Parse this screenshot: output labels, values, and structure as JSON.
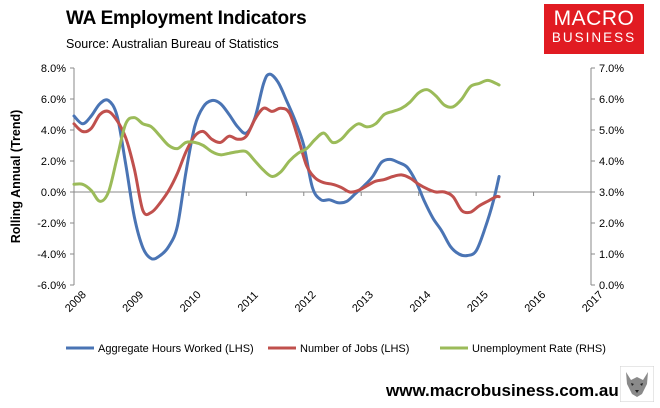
{
  "header": {
    "title": "WA Employment Indicators",
    "subtitle": "Source: Australian Bureau of Statistics"
  },
  "logo": {
    "line1": "MACRO",
    "line2": "BUSINESS"
  },
  "footer": {
    "website": "www.macrobusiness.com.au"
  },
  "colors": {
    "hours": "#4a74b4",
    "jobs": "#c0504d",
    "unemployment": "#9bbb59",
    "brand_red": "#e11b22"
  },
  "chart_data": {
    "type": "line",
    "xlabel": "",
    "ylabel": "Rolling Annual (Trend)",
    "x_tick_labels": [
      "2008",
      "2009",
      "2010",
      "2011",
      "2012",
      "2013",
      "2014",
      "2015",
      "2016",
      "2017"
    ],
    "xlim": [
      2008,
      2017
    ],
    "ylim_left": [
      -6,
      8
    ],
    "ylim_right": [
      0,
      7
    ],
    "y_tick_labels_left": [
      "8.0%",
      "6.0%",
      "4.0%",
      "2.0%",
      "0.0%",
      "-2.0%",
      "-4.0%",
      "-6.0%"
    ],
    "y_tick_labels_right": [
      "7.0%",
      "6.0%",
      "5.0%",
      "4.0%",
      "3.0%",
      "2.0%",
      "1.0%",
      "0.0%"
    ],
    "legend_position": "bottom",
    "grid": false,
    "series": [
      {
        "name": "Aggregate Hours Worked (LHS)",
        "axis": "left",
        "points": [
          [
            2008.0,
            4.9
          ],
          [
            2008.15,
            4.4
          ],
          [
            2008.3,
            4.9
          ],
          [
            2008.45,
            5.7
          ],
          [
            2008.6,
            5.9
          ],
          [
            2008.75,
            4.9
          ],
          [
            2008.9,
            1.8
          ],
          [
            2009.05,
            -1.6
          ],
          [
            2009.2,
            -3.6
          ],
          [
            2009.35,
            -4.3
          ],
          [
            2009.5,
            -4.1
          ],
          [
            2009.65,
            -3.5
          ],
          [
            2009.8,
            -2.2
          ],
          [
            2009.95,
            1.3
          ],
          [
            2010.1,
            4.2
          ],
          [
            2010.25,
            5.5
          ],
          [
            2010.4,
            5.9
          ],
          [
            2010.55,
            5.7
          ],
          [
            2010.7,
            5.0
          ],
          [
            2010.85,
            4.2
          ],
          [
            2011.0,
            3.8
          ],
          [
            2011.15,
            4.8
          ],
          [
            2011.3,
            7.0
          ],
          [
            2011.4,
            7.6
          ],
          [
            2011.55,
            7.1
          ],
          [
            2011.7,
            5.9
          ],
          [
            2011.85,
            4.6
          ],
          [
            2012.0,
            3.0
          ],
          [
            2012.15,
            0.3
          ],
          [
            2012.3,
            -0.5
          ],
          [
            2012.45,
            -0.5
          ],
          [
            2012.6,
            -0.7
          ],
          [
            2012.75,
            -0.6
          ],
          [
            2012.9,
            -0.1
          ],
          [
            2013.05,
            0.4
          ],
          [
            2013.2,
            1.0
          ],
          [
            2013.35,
            1.9
          ],
          [
            2013.5,
            2.1
          ],
          [
            2013.65,
            1.9
          ],
          [
            2013.8,
            1.6
          ],
          [
            2013.95,
            0.7
          ],
          [
            2014.1,
            -0.6
          ],
          [
            2014.25,
            -1.7
          ],
          [
            2014.4,
            -2.5
          ],
          [
            2014.55,
            -3.5
          ],
          [
            2014.7,
            -4.0
          ],
          [
            2014.85,
            -4.1
          ],
          [
            2015.0,
            -3.8
          ],
          [
            2015.15,
            -2.4
          ],
          [
            2015.3,
            -0.6
          ],
          [
            2015.4,
            1.0
          ]
        ]
      },
      {
        "name": "Number of Jobs (LHS)",
        "axis": "left",
        "points": [
          [
            2008.0,
            4.4
          ],
          [
            2008.15,
            3.9
          ],
          [
            2008.3,
            4.1
          ],
          [
            2008.45,
            5.0
          ],
          [
            2008.6,
            5.2
          ],
          [
            2008.75,
            4.6
          ],
          [
            2008.9,
            3.5
          ],
          [
            2009.05,
            1.5
          ],
          [
            2009.2,
            -1.2
          ],
          [
            2009.35,
            -1.3
          ],
          [
            2009.5,
            -0.7
          ],
          [
            2009.65,
            0.1
          ],
          [
            2009.8,
            1.2
          ],
          [
            2009.95,
            2.6
          ],
          [
            2010.1,
            3.6
          ],
          [
            2010.25,
            3.9
          ],
          [
            2010.4,
            3.4
          ],
          [
            2010.55,
            3.2
          ],
          [
            2010.7,
            3.6
          ],
          [
            2010.85,
            3.4
          ],
          [
            2011.0,
            3.6
          ],
          [
            2011.15,
            4.7
          ],
          [
            2011.3,
            5.4
          ],
          [
            2011.45,
            5.2
          ],
          [
            2011.6,
            5.4
          ],
          [
            2011.75,
            5.1
          ],
          [
            2011.9,
            3.5
          ],
          [
            2012.05,
            1.7
          ],
          [
            2012.2,
            0.9
          ],
          [
            2012.35,
            0.6
          ],
          [
            2012.5,
            0.5
          ],
          [
            2012.65,
            0.3
          ],
          [
            2012.8,
            0.0
          ],
          [
            2012.95,
            0.1
          ],
          [
            2013.1,
            0.4
          ],
          [
            2013.25,
            0.7
          ],
          [
            2013.4,
            0.8
          ],
          [
            2013.55,
            1.0
          ],
          [
            2013.7,
            1.1
          ],
          [
            2013.85,
            0.9
          ],
          [
            2014.0,
            0.5
          ],
          [
            2014.15,
            0.2
          ],
          [
            2014.3,
            0.0
          ],
          [
            2014.45,
            0.0
          ],
          [
            2014.6,
            -0.3
          ],
          [
            2014.75,
            -1.2
          ],
          [
            2014.9,
            -1.3
          ],
          [
            2015.05,
            -0.9
          ],
          [
            2015.2,
            -0.6
          ],
          [
            2015.35,
            -0.3
          ],
          [
            2015.4,
            -0.3
          ]
        ]
      },
      {
        "name": "Unemployment Rate (RHS)",
        "axis": "right",
        "points": [
          [
            2008.0,
            3.25
          ],
          [
            2008.15,
            3.25
          ],
          [
            2008.3,
            3.05
          ],
          [
            2008.45,
            2.7
          ],
          [
            2008.6,
            3.0
          ],
          [
            2008.75,
            4.1
          ],
          [
            2008.9,
            5.2
          ],
          [
            2009.05,
            5.4
          ],
          [
            2009.2,
            5.2
          ],
          [
            2009.35,
            5.1
          ],
          [
            2009.5,
            4.8
          ],
          [
            2009.65,
            4.5
          ],
          [
            2009.8,
            4.4
          ],
          [
            2009.95,
            4.6
          ],
          [
            2010.1,
            4.6
          ],
          [
            2010.25,
            4.5
          ],
          [
            2010.4,
            4.3
          ],
          [
            2010.55,
            4.2
          ],
          [
            2010.7,
            4.25
          ],
          [
            2010.85,
            4.3
          ],
          [
            2011.0,
            4.3
          ],
          [
            2011.15,
            4.0
          ],
          [
            2011.3,
            3.7
          ],
          [
            2011.45,
            3.5
          ],
          [
            2011.6,
            3.65
          ],
          [
            2011.75,
            4.0
          ],
          [
            2011.9,
            4.25
          ],
          [
            2012.05,
            4.4
          ],
          [
            2012.2,
            4.7
          ],
          [
            2012.35,
            4.9
          ],
          [
            2012.5,
            4.6
          ],
          [
            2012.65,
            4.7
          ],
          [
            2012.8,
            5.0
          ],
          [
            2012.95,
            5.2
          ],
          [
            2013.1,
            5.1
          ],
          [
            2013.25,
            5.2
          ],
          [
            2013.4,
            5.5
          ],
          [
            2013.55,
            5.6
          ],
          [
            2013.7,
            5.7
          ],
          [
            2013.85,
            5.9
          ],
          [
            2014.0,
            6.2
          ],
          [
            2014.15,
            6.3
          ],
          [
            2014.3,
            6.1
          ],
          [
            2014.45,
            5.8
          ],
          [
            2014.6,
            5.75
          ],
          [
            2014.75,
            6.0
          ],
          [
            2014.9,
            6.4
          ],
          [
            2015.05,
            6.5
          ],
          [
            2015.2,
            6.6
          ],
          [
            2015.35,
            6.5
          ],
          [
            2015.4,
            6.45
          ]
        ]
      }
    ]
  }
}
